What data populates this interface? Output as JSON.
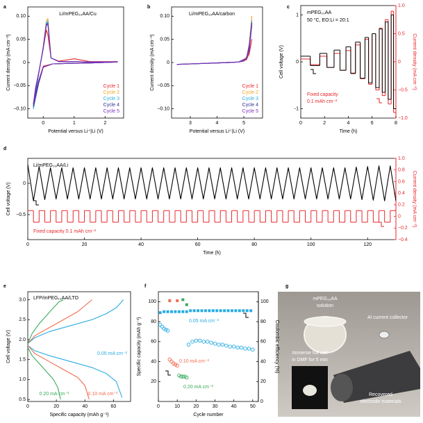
{
  "chart_data": [
    {
      "type": "line",
      "label": "a",
      "title": "Li/mPEG₁₀AA/Cu",
      "xlabel": "Potential versus Li⁺|Li  (V)",
      "ylabel": "Current density (mA cm⁻²)",
      "xlim": [
        -0.5,
        2.6
      ],
      "xticks": [
        0,
        1,
        2
      ],
      "ylim": [
        -0.12,
        0.12
      ],
      "yticks": [
        {
          "value": -0.1,
          "label": "−0.10"
        },
        {
          "value": -0.05,
          "label": "−0.05"
        },
        0,
        0.05,
        {
          "value": 0.1,
          "label": "0.10"
        }
      ],
      "legend": "lower right",
      "x": [
        -0.32,
        -0.25,
        -0.1,
        0,
        0.1,
        0.15,
        0.25,
        0.5,
        1,
        1.5,
        2.4,
        1.5,
        0.8,
        0.3,
        0,
        -0.15,
        -0.32
      ],
      "series": [
        {
          "name": "Cycle 1",
          "color": "#e8252a",
          "values": [
            -0.09,
            -0.06,
            -0.005,
            0.03,
            0.07,
            0.06,
            0.01,
            0.003,
            0.008,
            0.002,
            0.002,
            -0.001,
            -0.002,
            -0.003,
            -0.008,
            -0.04,
            -0.09
          ]
        },
        {
          "name": "Cycle 2",
          "color": "#f5a623",
          "values": [
            -0.1,
            -0.065,
            -0.006,
            0.035,
            0.09,
            0.095,
            0.01,
            0.002,
            0.002,
            0.001,
            0.001,
            -0.001,
            -0.002,
            -0.003,
            -0.01,
            -0.045,
            -0.1
          ]
        },
        {
          "name": "Cycle 3",
          "color": "#29abe2",
          "values": [
            -0.1,
            -0.065,
            -0.006,
            0.033,
            0.085,
            0.09,
            0.01,
            0.002,
            0.002,
            0.001,
            0.001,
            -0.001,
            -0.002,
            -0.003,
            -0.01,
            -0.045,
            -0.1
          ]
        },
        {
          "name": "Cycle 4",
          "color": "#2e3192",
          "values": [
            -0.095,
            -0.06,
            -0.006,
            0.032,
            0.082,
            0.085,
            0.01,
            0.002,
            0.002,
            0.001,
            0.001,
            -0.001,
            -0.002,
            -0.003,
            -0.01,
            -0.045,
            -0.095
          ]
        },
        {
          "name": "Cycle 5",
          "color": "#7b2fbe",
          "values": [
            -0.09,
            -0.055,
            -0.006,
            0.03,
            0.08,
            0.082,
            0.01,
            0.002,
            0.002,
            0.001,
            0.001,
            -0.001,
            -0.002,
            -0.003,
            -0.01,
            -0.04,
            -0.09
          ]
        }
      ]
    },
    {
      "type": "line",
      "label": "b",
      "title": "Li/mPEG₁₀AA/carbon",
      "xlabel": "Potential versus Li⁺|Li  (V)",
      "ylabel": "Current density (mA cm⁻²)",
      "xlim": [
        2.3,
        5.7
      ],
      "xticks": [
        3,
        4,
        5
      ],
      "ylim": [
        -0.12,
        0.12
      ],
      "yticks": [
        {
          "value": -0.1,
          "label": "−0.10"
        },
        {
          "value": -0.05,
          "label": "−0.05"
        },
        0,
        0.05,
        {
          "value": 0.1,
          "label": "0.10"
        }
      ],
      "legend": "lower right",
      "x": [
        2.5,
        3,
        3.5,
        4,
        4.5,
        4.8,
        5,
        5.1,
        5.2,
        5.3,
        5.3,
        5.2,
        5.1,
        4.8,
        3.5,
        2.5
      ],
      "series": [
        {
          "name": "Cycle 1",
          "color": "#e8252a",
          "values": [
            -0.004,
            -0.003,
            -0.002,
            -0.001,
            0,
            0.001,
            0.003,
            0.008,
            0.018,
            0.05,
            0.05,
            0.02,
            0.006,
            0.001,
            -0.002,
            -0.004
          ]
        },
        {
          "name": "Cycle 2",
          "color": "#f5a623",
          "values": [
            -0.004,
            -0.003,
            -0.002,
            -0.001,
            0,
            0.001,
            0.004,
            0.012,
            0.03,
            0.1,
            0.1,
            0.04,
            0.01,
            0.001,
            -0.002,
            -0.004
          ]
        },
        {
          "name": "Cycle 3",
          "color": "#29abe2",
          "values": [
            -0.004,
            -0.003,
            -0.002,
            -0.001,
            0,
            0.001,
            0.004,
            0.011,
            0.028,
            0.09,
            0.09,
            0.037,
            0.009,
            0.001,
            -0.002,
            -0.004
          ]
        },
        {
          "name": "Cycle 4",
          "color": "#2e3192",
          "values": [
            -0.004,
            -0.003,
            -0.002,
            -0.001,
            0,
            0.001,
            0.004,
            0.01,
            0.026,
            0.085,
            0.085,
            0.035,
            0.009,
            0.001,
            -0.002,
            -0.004
          ]
        },
        {
          "name": "Cycle 5",
          "color": "#7b2fbe",
          "values": [
            -0.004,
            -0.003,
            -0.002,
            -0.001,
            0,
            0.001,
            0.004,
            0.01,
            0.025,
            0.08,
            0.08,
            0.033,
            0.008,
            0.001,
            -0.002,
            -0.004
          ]
        }
      ]
    },
    {
      "type": "line",
      "label": "c",
      "title": "mPEG₁₀AA",
      "notes": [
        "50 °C, EO:Li = 20:1",
        "Fixed capacity",
        "0.1 mAh cm⁻²"
      ],
      "xlabel": "Time (h)",
      "ylabel": "Cell voltage (V)",
      "y2label": "Current density (mA cm⁻²)",
      "y2color": "#e8252a",
      "xlim": [
        0,
        8
      ],
      "xticks": [
        0,
        2,
        4,
        6,
        8
      ],
      "ylim": [
        -1.2,
        1.2
      ],
      "yticks": [
        -1,
        0,
        1
      ],
      "y2lim": [
        -1,
        1
      ],
      "y2ticks": [
        {
          "value": -1,
          "label": "−1.0"
        },
        {
          "value": -0.5,
          "label": "−0.5"
        },
        0,
        0.5,
        {
          "value": 1,
          "label": "1.0"
        }
      ],
      "x": [
        0,
        0.8,
        1.6,
        2.2,
        2.8,
        3.3,
        3.8,
        4.2,
        4.6,
        5.0,
        5.4,
        5.7,
        6.0,
        6.3,
        6.6,
        6.85,
        7.1,
        7.35,
        7.6,
        7.8,
        8.0
      ],
      "series": [
        {
          "color": "#e8252a",
          "axis": "y2",
          "step": true,
          "values": [
            0.05,
            -0.05,
            0.1,
            -0.1,
            0.15,
            -0.15,
            0.2,
            -0.2,
            0.3,
            -0.3,
            0.4,
            -0.4,
            0.5,
            -0.5,
            0.6,
            -0.6,
            0.75,
            -0.75,
            0.9,
            -0.9,
            -0.9
          ]
        },
        {
          "color": "#000000",
          "step": true,
          "values": [
            0.12,
            -0.08,
            0.18,
            -0.12,
            0.25,
            -0.18,
            0.32,
            -0.25,
            0.42,
            -0.35,
            0.52,
            -0.45,
            0.6,
            -0.55,
            0.7,
            -0.65,
            0.85,
            -0.8,
            1.0,
            -1.0,
            -1.0
          ]
        }
      ]
    },
    {
      "type": "line",
      "label": "d",
      "title": "Li/mPEG₁₀AA/Li",
      "notes": [
        "Fixed capacity 0.1 mAh cm⁻²"
      ],
      "xlabel": "Time (h)",
      "ylabel": "Cell voltage (V)",
      "y2label": "Current density (mA cm⁻²)",
      "y2color": "#e8252a",
      "xlim": [
        0,
        130
      ],
      "xticks": [
        0,
        20,
        40,
        60,
        80,
        100,
        120
      ],
      "ylim": [
        -0.9,
        0.4
      ],
      "yticks": [
        {
          "value": -0.5,
          "label": "−0.5"
        },
        0
      ],
      "y2lim": [
        -0.4,
        1.0
      ],
      "y2ticks": [
        {
          "value": -0.4,
          "label": "−0.4"
        },
        {
          "value": -0.2,
          "label": "−0.2"
        },
        0,
        0.2,
        0.4,
        0.6,
        0.8,
        {
          "value": 1.0,
          "label": "1.0"
        }
      ],
      "x": [
        0,
        2,
        4,
        6,
        8,
        10,
        12,
        14,
        16,
        18,
        20,
        22,
        24,
        26,
        28,
        30,
        32,
        34,
        36,
        38,
        40,
        42,
        44,
        46,
        48,
        50,
        52,
        54,
        56,
        58,
        60,
        62,
        64,
        66,
        68,
        70,
        72,
        74,
        76,
        78,
        80,
        82,
        84,
        86,
        88,
        90,
        92,
        94,
        96,
        98,
        100,
        102,
        104,
        106,
        108,
        110,
        112,
        114,
        116,
        118,
        120,
        122,
        124,
        126,
        128,
        130
      ],
      "series": [
        {
          "color": "#e8252a",
          "axis": "y2",
          "step": true,
          "values": [
            0.1,
            -0.1,
            0.1,
            -0.1,
            0.1,
            -0.1,
            0.1,
            -0.1,
            0.1,
            -0.1,
            0.1,
            -0.1,
            0.1,
            -0.1,
            0.1,
            -0.1,
            0.1,
            -0.1,
            0.1,
            -0.1,
            0.1,
            -0.1,
            0.1,
            -0.1,
            0.1,
            -0.1,
            0.1,
            -0.1,
            0.1,
            -0.1,
            0.1,
            -0.1,
            0.1,
            -0.1,
            0.1,
            -0.1,
            0.1,
            -0.1,
            0.1,
            -0.1,
            0.1,
            -0.1,
            0.1,
            -0.1,
            0.1,
            -0.1,
            0.1,
            -0.1,
            0.1,
            -0.1,
            0.1,
            -0.1,
            0.1,
            -0.1,
            0.1,
            -0.1,
            0.1,
            -0.1,
            0.1,
            -0.1,
            0.1,
            -0.1,
            0.1,
            -0.1,
            0.1,
            -0.1
          ]
        },
        {
          "color": "#000000",
          "values": [
            0.3,
            -0.28,
            0.27,
            -0.26,
            0.25,
            -0.25,
            0.25,
            -0.25,
            0.25,
            -0.25,
            0.25,
            -0.25,
            0.25,
            -0.25,
            0.25,
            -0.25,
            0.25,
            -0.25,
            0.25,
            -0.25,
            0.25,
            -0.25,
            0.25,
            -0.25,
            0.25,
            -0.25,
            0.25,
            -0.25,
            0.25,
            -0.25,
            0.25,
            -0.25,
            0.25,
            -0.25,
            0.25,
            -0.25,
            0.25,
            -0.25,
            0.25,
            -0.25,
            0.25,
            -0.25,
            0.25,
            -0.25,
            0.25,
            -0.25,
            0.25,
            -0.25,
            0.25,
            -0.25,
            0.25,
            -0.25,
            0.25,
            -0.25,
            0.25,
            -0.25,
            0.25,
            -0.25,
            0.26,
            -0.26,
            0.27,
            -0.27,
            0.28,
            -0.28,
            0.28,
            -0.28
          ]
        }
      ]
    },
    {
      "type": "line",
      "label": "e",
      "title": "LFP/mPEG₁₀AA/LTO",
      "xlabel": "Specific capacity (mAh g⁻¹)",
      "ylabel": "Cell voltage (V)",
      "xlim": [
        0,
        72
      ],
      "xticks": [
        0,
        20,
        40,
        60
      ],
      "ylim": [
        0.45,
        3.2
      ],
      "yticks": [
        0.5,
        {
          "value": 1,
          "label": "1.0"
        },
        1.5,
        {
          "value": 2,
          "label": "2.0"
        },
        2.5,
        {
          "value": 3,
          "label": "3.0"
        }
      ],
      "series": [
        {
          "name": "0.05 mA cm⁻²",
          "color": "#29abe2",
          "x": [
            0,
            5,
            15,
            30,
            45,
            55,
            62,
            67,
            null,
            0,
            5,
            15,
            30,
            45,
            55,
            62,
            66
          ],
          "values": [
            1.9,
            2.05,
            2.2,
            2.35,
            2.5,
            2.65,
            2.8,
            3.0,
            null,
            1.85,
            1.72,
            1.6,
            1.45,
            1.3,
            1.15,
            0.95,
            0.55
          ]
        },
        {
          "name": "0.10 mA cm⁻²",
          "color": "#f26b4f",
          "x": [
            0,
            5,
            15,
            25,
            35,
            40,
            45,
            null,
            0,
            5,
            15,
            25,
            35,
            40,
            43
          ],
          "values": [
            1.9,
            2.1,
            2.3,
            2.5,
            2.7,
            2.85,
            3.0,
            null,
            1.85,
            1.65,
            1.45,
            1.25,
            1.05,
            0.85,
            0.5
          ]
        },
        {
          "name": "0.20 mA cm⁻²",
          "color": "#3aaa5c",
          "x": [
            0,
            3,
            8,
            13,
            18,
            22,
            25,
            null,
            0,
            3,
            8,
            13,
            18,
            21,
            23
          ],
          "values": [
            1.9,
            2.15,
            2.4,
            2.6,
            2.8,
            2.95,
            3.0,
            null,
            1.8,
            1.6,
            1.4,
            1.2,
            1.0,
            0.8,
            0.5
          ]
        }
      ]
    },
    {
      "type": "scatter",
      "label": "f",
      "xlabel": "Cycle number",
      "ylabel": "Specific capacity (mAh g⁻¹)",
      "y2label": "Coulombic efficiency (%)",
      "xlim": [
        0,
        53
      ],
      "xticks": [
        0,
        10,
        20,
        30,
        40,
        50
      ],
      "ylim": [
        0,
        110
      ],
      "yticks": [
        20,
        40,
        60,
        80,
        100
      ],
      "y2lim": [
        0,
        110
      ],
      "y2ticks": [
        0,
        20,
        40,
        60,
        80,
        100
      ],
      "series": [
        {
          "name": "0.05 mA cm⁻²",
          "color": "#29abe2",
          "marker": "circle",
          "x": [
            1,
            2,
            3,
            4,
            5,
            16,
            18,
            20,
            22,
            24,
            26,
            28,
            30,
            32,
            34,
            36,
            38,
            40,
            42,
            44,
            46,
            48,
            50
          ],
          "values": [
            77,
            75,
            73,
            72,
            71,
            57,
            60,
            61,
            61,
            60,
            60,
            59,
            58,
            57,
            57,
            56,
            55,
            55,
            54,
            54,
            53,
            53,
            52
          ]
        },
        {
          "name": "0.10 mA cm⁻²",
          "color": "#f26b4f",
          "marker": "circle",
          "x": [
            6,
            7,
            8,
            9,
            10
          ],
          "values": [
            42,
            40,
            38,
            37,
            36
          ]
        },
        {
          "name": "0.20 mA cm⁻²",
          "color": "#3aaa5c",
          "marker": "circle",
          "x": [
            11,
            12,
            13,
            14,
            15
          ],
          "values": [
            26,
            25,
            25,
            25,
            24
          ]
        },
        {
          "color": "#29abe2",
          "marker": "square",
          "axis": "y2",
          "x": [
            1,
            3,
            5,
            7,
            9,
            11,
            13,
            15,
            17,
            19,
            21,
            23,
            25,
            27,
            29,
            31,
            33,
            35,
            37,
            39,
            41,
            43,
            45,
            47,
            49
          ],
          "values": [
            89,
            90,
            90,
            90,
            90,
            90,
            90,
            90,
            91,
            91,
            91,
            91,
            91,
            91,
            91,
            91,
            91,
            91,
            91,
            91,
            91,
            91,
            91,
            91,
            91
          ]
        },
        {
          "color": "#f26b4f",
          "marker": "square",
          "axis": "y2",
          "x": [
            6,
            10
          ],
          "values": [
            101,
            101
          ]
        },
        {
          "color": "#3aaa5c",
          "marker": "square",
          "axis": "y2",
          "x": [
            13,
            15
          ],
          "values": [
            102,
            97
          ]
        }
      ]
    }
  ],
  "photo": {
    "label": "g",
    "solution": [
      "mPEG₁₀AA",
      "solution"
    ],
    "collector": "Al current collector",
    "immerse": [
      "Immerse full cell",
      "in DMF for 5 min"
    ],
    "recovered": [
      "Recovered",
      "electrode materials"
    ]
  }
}
